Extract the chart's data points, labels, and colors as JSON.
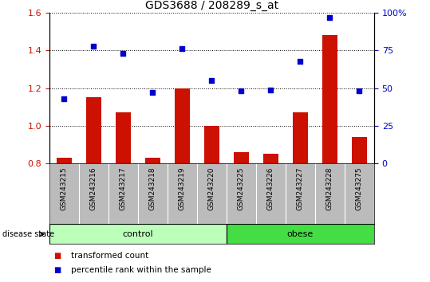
{
  "title": "GDS3688 / 208289_s_at",
  "samples": [
    "GSM243215",
    "GSM243216",
    "GSM243217",
    "GSM243218",
    "GSM243219",
    "GSM243220",
    "GSM243225",
    "GSM243226",
    "GSM243227",
    "GSM243228",
    "GSM243275"
  ],
  "transformed_count": [
    0.83,
    1.15,
    1.07,
    0.83,
    1.2,
    1.0,
    0.86,
    0.85,
    1.07,
    1.48,
    0.94
  ],
  "percentile_rank": [
    43,
    78,
    73,
    47,
    76,
    55,
    48,
    49,
    68,
    97,
    48
  ],
  "bar_color": "#cc1100",
  "dot_color": "#0000cc",
  "left_ylim": [
    0.8,
    1.6
  ],
  "right_ylim": [
    0,
    100
  ],
  "left_yticks": [
    0.8,
    1.0,
    1.2,
    1.4,
    1.6
  ],
  "right_yticks": [
    0,
    25,
    50,
    75,
    100
  ],
  "right_yticklabels": [
    "0",
    "25",
    "50",
    "75",
    "100%"
  ],
  "n_control": 6,
  "n_obese": 5,
  "control_color": "#bbffbb",
  "obese_color": "#44dd44",
  "label_color_left": "#cc1100",
  "label_color_right": "#0000cc",
  "legend_bar_label": "transformed count",
  "legend_dot_label": "percentile rank within the sample",
  "disease_state_label": "disease state",
  "control_label": "control",
  "obese_label": "obese",
  "xtick_bg_color": "#bbbbbb",
  "bar_bottom": 0.8,
  "bar_width": 0.5
}
